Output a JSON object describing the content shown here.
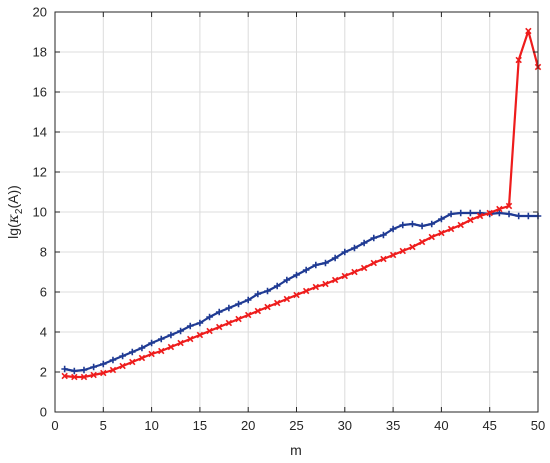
{
  "chart_data": {
    "type": "line",
    "xlabel": "m",
    "ylabel_main": "lg(",
    "ylabel_kappa": "κ",
    "ylabel_sub": "2",
    "ylabel_tail": "(A))",
    "xlim": [
      0,
      50
    ],
    "ylim": [
      0,
      20
    ],
    "xticks": [
      0,
      5,
      10,
      15,
      20,
      25,
      30,
      35,
      40,
      45,
      50
    ],
    "yticks": [
      0,
      2,
      4,
      6,
      8,
      10,
      12,
      14,
      16,
      18,
      20
    ],
    "grid": true,
    "x": [
      1,
      2,
      3,
      4,
      5,
      6,
      7,
      8,
      9,
      10,
      11,
      12,
      13,
      14,
      15,
      16,
      17,
      18,
      19,
      20,
      21,
      22,
      23,
      24,
      25,
      26,
      27,
      28,
      29,
      30,
      31,
      32,
      33,
      34,
      35,
      36,
      37,
      38,
      39,
      40,
      41,
      42,
      43,
      44,
      45,
      46,
      47,
      48,
      49,
      50
    ],
    "series": [
      {
        "color": "#1f3a93",
        "marker": "plus",
        "values": [
          2.15,
          2.05,
          2.1,
          2.25,
          2.4,
          2.6,
          2.8,
          3.0,
          3.2,
          3.45,
          3.65,
          3.85,
          4.05,
          4.3,
          4.45,
          4.75,
          5.0,
          5.2,
          5.4,
          5.6,
          5.9,
          6.05,
          6.3,
          6.6,
          6.85,
          7.1,
          7.35,
          7.45,
          7.7,
          8.0,
          8.2,
          8.45,
          8.7,
          8.85,
          9.15,
          9.35,
          9.4,
          9.3,
          9.4,
          9.65,
          9.9,
          9.95,
          9.95,
          9.95,
          9.9,
          9.95,
          9.9,
          9.8,
          9.8,
          9.8
        ]
      },
      {
        "color": "#ee1c1c",
        "marker": "x",
        "values": [
          1.8,
          1.75,
          1.75,
          1.85,
          1.95,
          2.1,
          2.3,
          2.5,
          2.7,
          2.9,
          3.05,
          3.25,
          3.45,
          3.65,
          3.85,
          4.05,
          4.25,
          4.45,
          4.65,
          4.85,
          5.05,
          5.25,
          5.45,
          5.65,
          5.85,
          6.05,
          6.25,
          6.4,
          6.6,
          6.8,
          7.0,
          7.2,
          7.45,
          7.65,
          7.85,
          8.05,
          8.25,
          8.5,
          8.75,
          8.95,
          9.15,
          9.35,
          9.6,
          9.8,
          9.95,
          10.15,
          10.3,
          17.6,
          19.05,
          17.25
        ]
      }
    ]
  }
}
